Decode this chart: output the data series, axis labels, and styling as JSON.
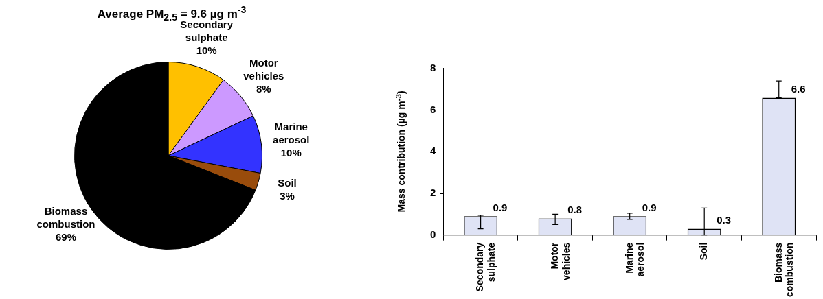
{
  "chart_data": [
    {
      "type": "pie",
      "title": "Average PM$_{2.5}$ = 9.6 µg m$^{-3}$",
      "categories": [
        "Secondary sulphate",
        "Motor vehicles",
        "Marine aerosol",
        "Soil",
        "Biomass combustion"
      ],
      "values": [
        10,
        8,
        10,
        3,
        69
      ],
      "value_labels": [
        "10%",
        "8%",
        "10%",
        "3%",
        "69%"
      ],
      "colors": [
        "#ffc000",
        "#cc99ff",
        "#3333ff",
        "#994c0c",
        "#000000"
      ],
      "legend": false
    },
    {
      "type": "bar",
      "ylabel": "Mass contribution (µg m$^{-3}$)",
      "categories": [
        "Secondary sulphate",
        "Motor vehicles",
        "Marine aerosol",
        "Soil",
        "Biomass combustion"
      ],
      "values": [
        0.9,
        0.8,
        0.9,
        0.3,
        6.6
      ],
      "errors": [
        [
          0.3,
          0.95
        ],
        [
          0.5,
          1.0
        ],
        [
          0.75,
          1.05
        ],
        [
          0,
          1.3
        ],
        [
          6.6,
          7.4
        ]
      ],
      "color": "#dfe3f5",
      "ylim": [
        0,
        8
      ],
      "yticks": [
        0,
        2,
        4,
        6,
        8
      ],
      "data_labels": true,
      "grid": false,
      "legend": false
    }
  ]
}
